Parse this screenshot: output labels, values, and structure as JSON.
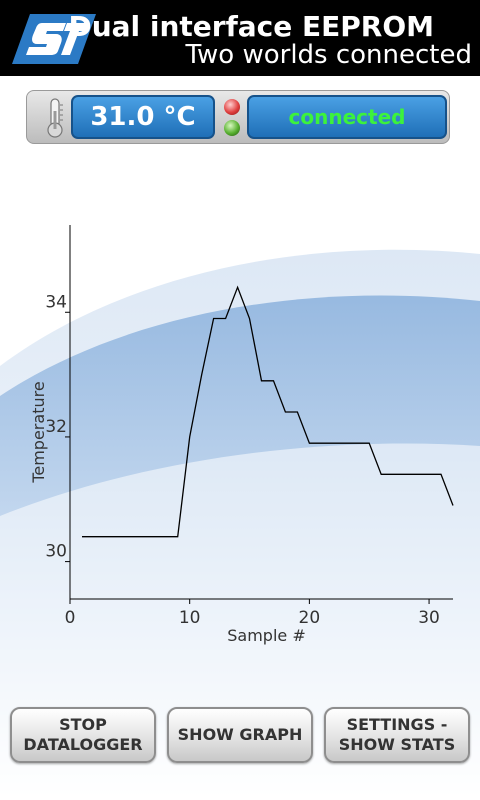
{
  "header": {
    "logo": "st-logo",
    "title": "Dual interface EEPROM",
    "subtitle": "Two worlds connected"
  },
  "status": {
    "thermometer_icon": "thermometer-icon",
    "temperature": "31.0 °C",
    "connection": "connected",
    "leds": {
      "red": "#e04040",
      "green": "#58b030"
    }
  },
  "chart_data": {
    "type": "line",
    "xlabel": "Sample #",
    "ylabel": "Temperature",
    "xlim": [
      0,
      32
    ],
    "ylim": [
      29.4,
      35.4
    ],
    "xticks": [
      0,
      10,
      20,
      30
    ],
    "yticks": [
      30,
      32,
      34
    ],
    "series": [
      {
        "points": [
          [
            1,
            30.4
          ],
          [
            9,
            30.4
          ],
          [
            10,
            32.0
          ],
          [
            11,
            33.0
          ],
          [
            12,
            33.9
          ],
          [
            13,
            33.9
          ],
          [
            14,
            34.4
          ],
          [
            15,
            33.9
          ],
          [
            16,
            32.9
          ],
          [
            17,
            32.9
          ],
          [
            18,
            32.4
          ],
          [
            19,
            32.4
          ],
          [
            20,
            31.9
          ],
          [
            25,
            31.9
          ],
          [
            26,
            31.4
          ],
          [
            31,
            31.4
          ],
          [
            32,
            30.9
          ]
        ]
      }
    ]
  },
  "buttons": {
    "stop": "STOP\nDATALOGGER",
    "graph": "SHOW GRAPH",
    "settings": "SETTINGS -\nSHOW STATS"
  },
  "colors": {
    "header_bg": "#000000",
    "panel_blue": "#1f6fb7",
    "connected_text": "#3cf23c",
    "logo_blue": "#2b7ac5"
  }
}
